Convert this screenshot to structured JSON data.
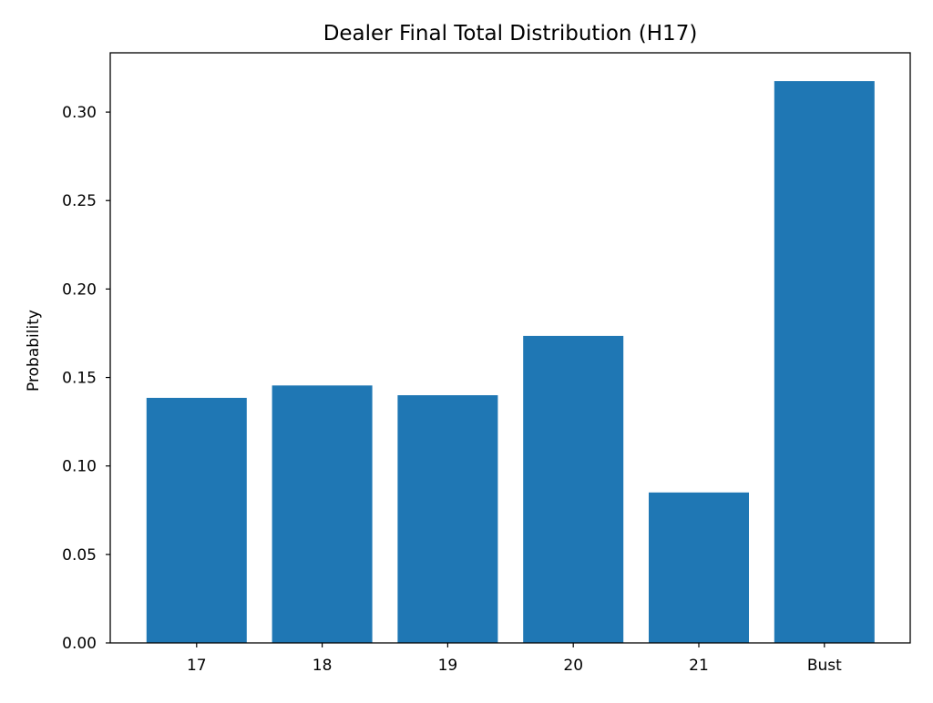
{
  "chart_data": {
    "type": "bar",
    "title": "Dealer Final Total Distribution (H17)",
    "xlabel": "",
    "ylabel": "Probability",
    "categories": [
      "17",
      "18",
      "19",
      "20",
      "21",
      "Bust"
    ],
    "values": [
      0.1385,
      0.1455,
      0.14,
      0.1735,
      0.085,
      0.3175
    ],
    "ylim": [
      0,
      0.3335
    ],
    "yticks": [
      0.0,
      0.05,
      0.1,
      0.15,
      0.2,
      0.25,
      0.3
    ],
    "ytick_labels": [
      "0.00",
      "0.05",
      "0.10",
      "0.15",
      "0.20",
      "0.25",
      "0.30"
    ],
    "bar_color": "#1f77b4",
    "grid": false,
    "legend": "none"
  }
}
